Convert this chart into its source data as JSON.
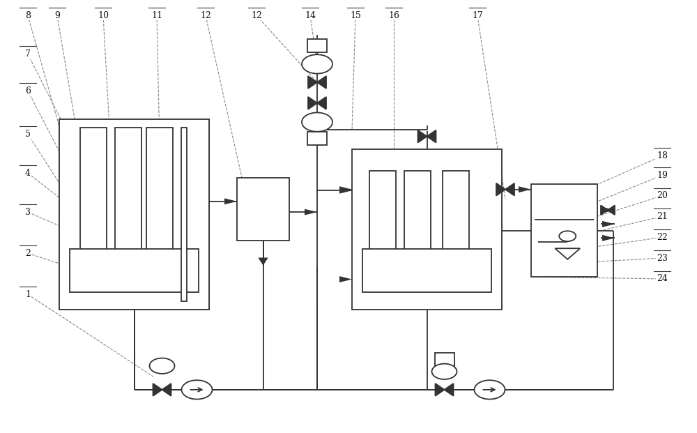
{
  "bg": "#ffffff",
  "lc": "#333333",
  "lw": 1.3,
  "figsize": [
    10.0,
    6.21
  ],
  "dpi": 100,
  "label_fs": 9,
  "leader_lc": "#888888",
  "leader_lw": 0.8
}
